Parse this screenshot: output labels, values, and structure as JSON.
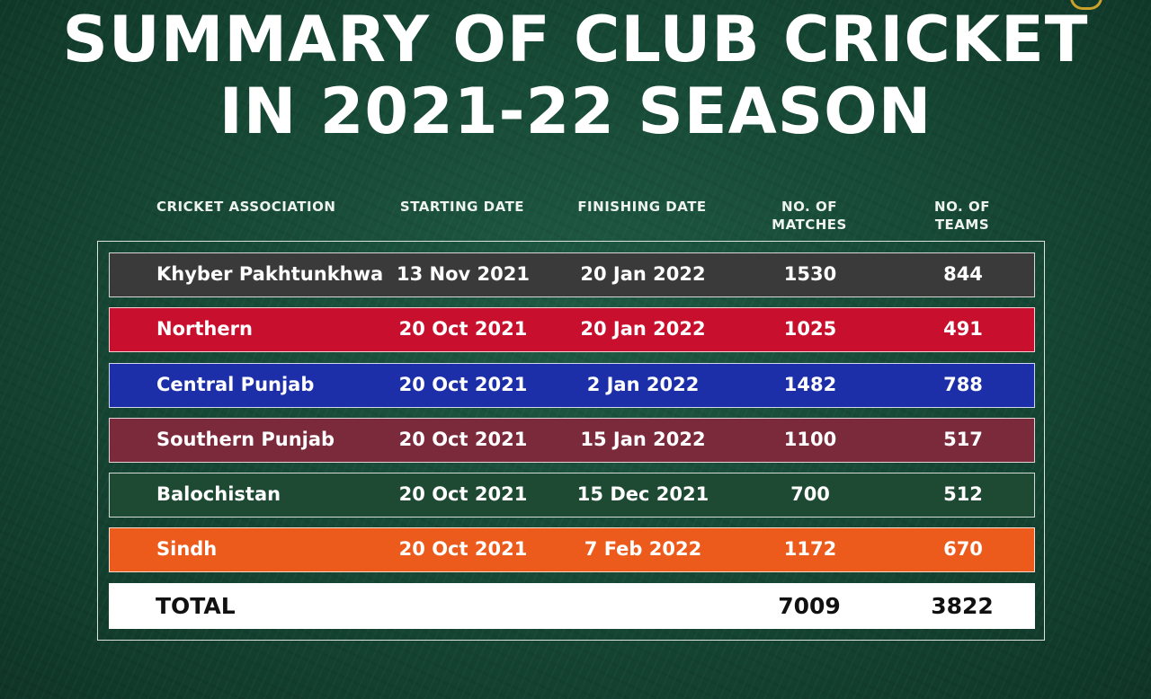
{
  "title": {
    "line1": "SUMMARY OF CLUB CRICKET",
    "line2": "IN 2021-22 SEASON"
  },
  "headers": {
    "association": "CRICKET ASSOCIATION",
    "starting_date": "STARTING DATE",
    "finishing_date": "FINISHING DATE",
    "matches_line1": "NO. OF",
    "matches_line2": "MATCHES",
    "teams_line1": "NO. OF",
    "teams_line2": "TEAMS"
  },
  "rows": [
    {
      "association": "Khyber Pakhtunkhwa",
      "starting_date": "13 Nov 2021",
      "finishing_date": "20 Jan 2022",
      "matches": "1530",
      "teams": "844",
      "color": "#3a3a3a"
    },
    {
      "association": "Northern",
      "starting_date": "20 Oct 2021",
      "finishing_date": "20 Jan 2022",
      "matches": "1025",
      "teams": "491",
      "color": "#c8102e"
    },
    {
      "association": "Central Punjab",
      "starting_date": "20 Oct 2021",
      "finishing_date": "2 Jan 2022",
      "matches": "1482",
      "teams": "788",
      "color": "#1c2fa8"
    },
    {
      "association": "Southern Punjab",
      "starting_date": "20 Oct 2021",
      "finishing_date": "15 Jan 2022",
      "matches": "1100",
      "teams": "517",
      "color": "#7b2a3c"
    },
    {
      "association": "Balochistan",
      "starting_date": "20 Oct 2021",
      "finishing_date": "15 Dec 2021",
      "matches": "700",
      "teams": "512",
      "color": "#1e4a33"
    },
    {
      "association": "Sindh",
      "starting_date": "20 Oct 2021",
      "finishing_date": "7 Feb 2022",
      "matches": "1172",
      "teams": "670",
      "color": "#ec5a1c"
    }
  ],
  "total": {
    "label": "TOTAL",
    "matches": "7009",
    "teams": "3822"
  }
}
